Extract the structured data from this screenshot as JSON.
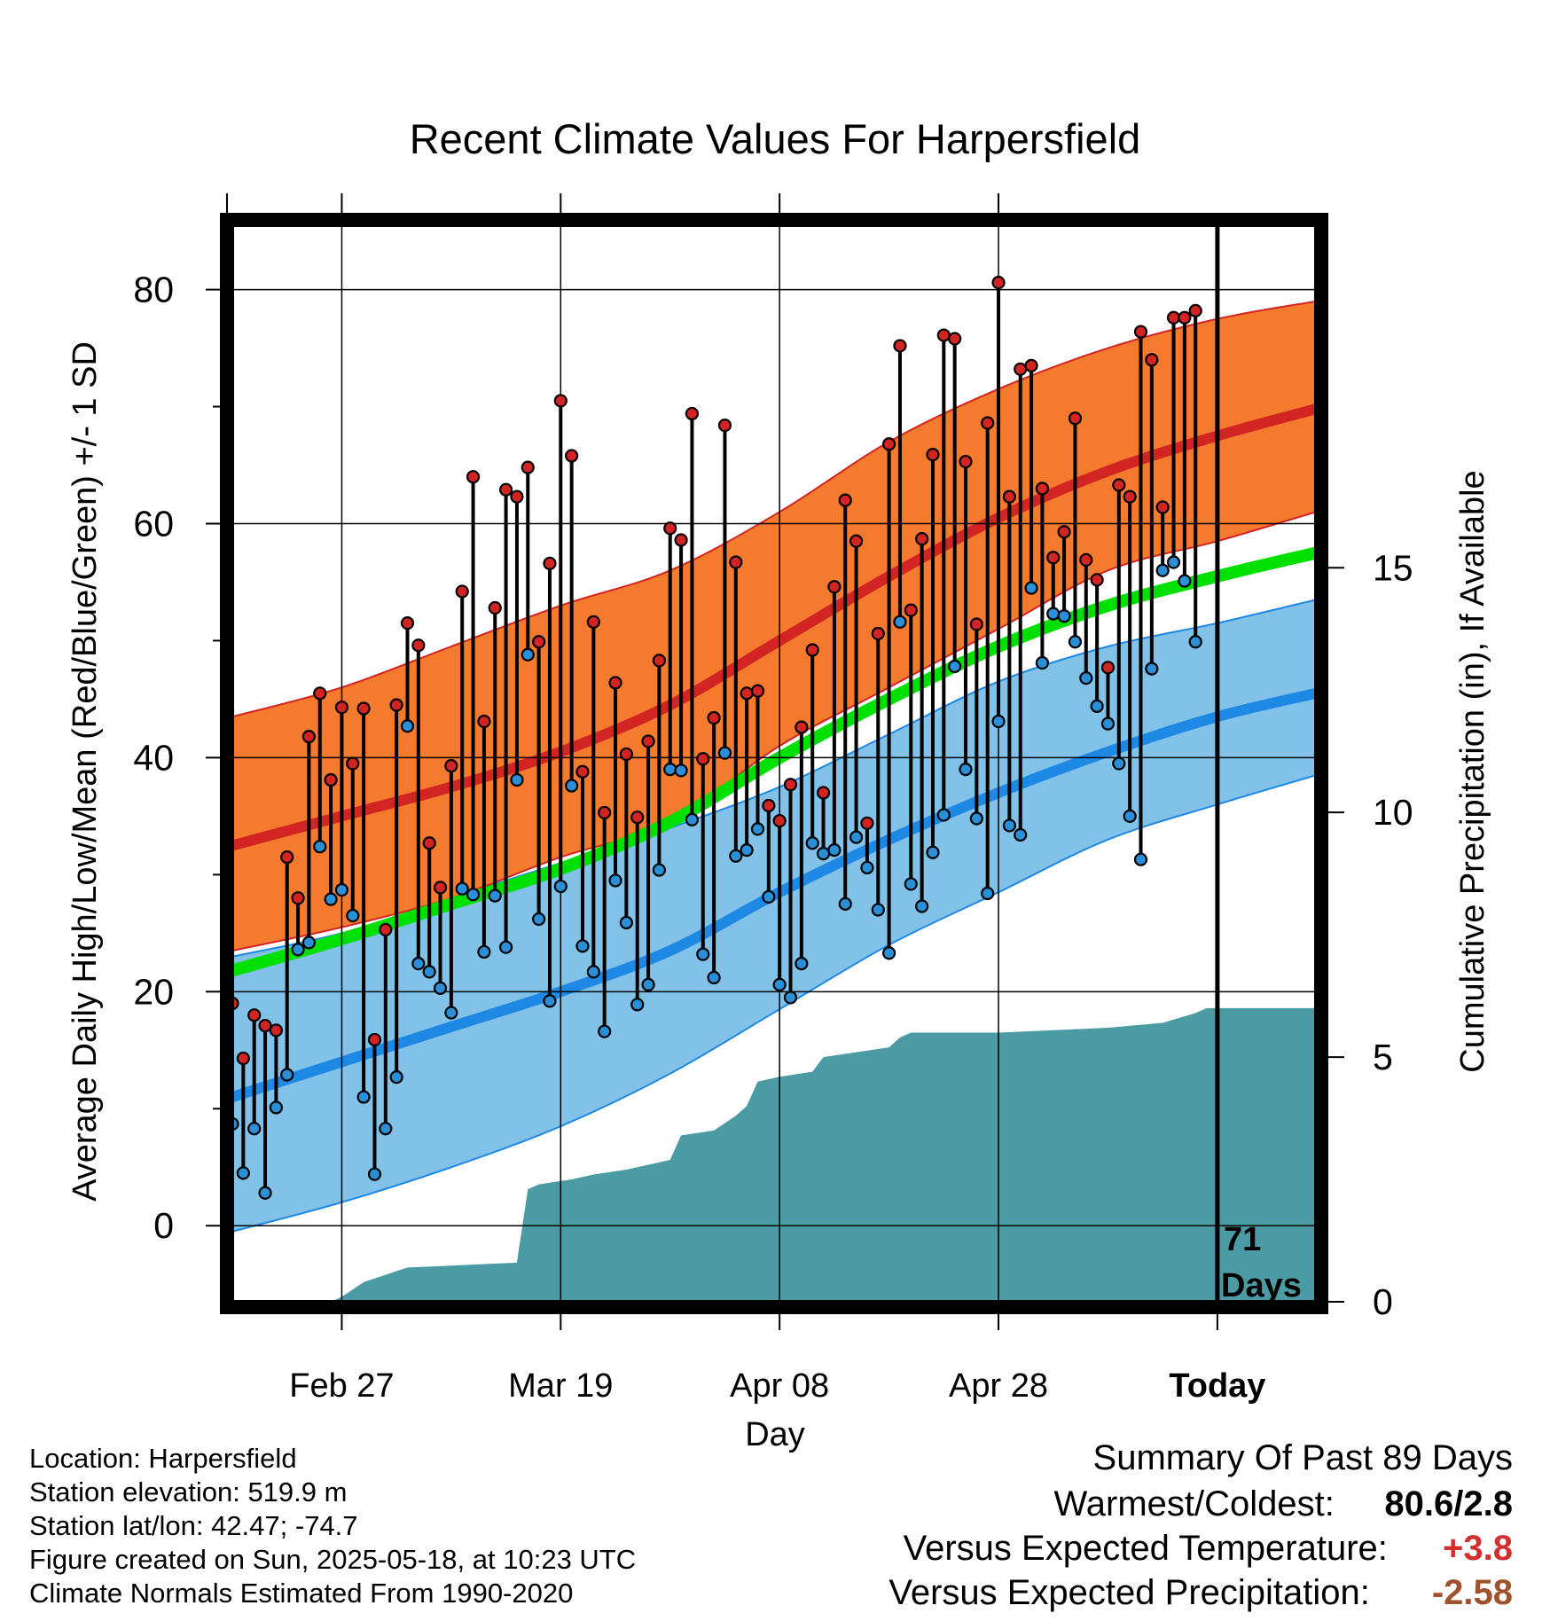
{
  "chart_data": {
    "type": "line",
    "title": "Recent Climate Values For Harpersfield",
    "xlabel": "Day",
    "ylabel": "Average Daily High/Low/Mean (Red/Blue/Green) +/- 1 SD",
    "y2label": "Cumulative Precipitation (in), If Available",
    "ylim": [
      -6.5,
      85.5
    ],
    "y2lim": [
      0,
      22
    ],
    "y_ticks": [
      "0",
      "20",
      "40",
      "60",
      "80"
    ],
    "y2_ticks": [
      "0",
      "5",
      "10",
      "15"
    ],
    "x_ticks": [
      "Feb 27",
      "Mar 19",
      "Apr 08",
      "Apr 28",
      "Today"
    ],
    "grid": true,
    "today_marker": {
      "label_line1": "71",
      "label_line2": "Days"
    },
    "normals": {
      "day": [
        0,
        10,
        20,
        30,
        40,
        50,
        60,
        70,
        80,
        90,
        99
      ],
      "high_mean": [
        32.5,
        35.0,
        37.5,
        40.5,
        44.5,
        50.0,
        55.5,
        60.5,
        64.5,
        67.5,
        69.8
      ],
      "high_upper": [
        43.5,
        46.0,
        49.5,
        53.0,
        56.0,
        61.0,
        67.0,
        71.5,
        75.0,
        77.5,
        79.0
      ],
      "high_lower": [
        23.5,
        25.5,
        28.0,
        31.5,
        34.5,
        41.0,
        46.0,
        51.0,
        56.0,
        58.5,
        61.0
      ],
      "mean_normal": [
        21.8,
        24.5,
        27.5,
        30.5,
        34.5,
        40.0,
        45.0,
        49.5,
        53.0,
        55.5,
        57.5
      ],
      "low_mean": [
        11.0,
        14.0,
        17.0,
        20.0,
        23.5,
        28.5,
        33.0,
        37.0,
        40.5,
        43.5,
        45.5
      ],
      "low_upper": [
        23.0,
        25.0,
        28.0,
        31.0,
        34.0,
        37.5,
        42.0,
        46.5,
        49.5,
        51.5,
        53.5
      ],
      "low_lower": [
        -0.5,
        2.0,
        5.0,
        8.5,
        13.0,
        18.5,
        24.0,
        28.5,
        33.0,
        36.0,
        38.5
      ]
    },
    "series": [
      {
        "name": "Daily High/Low",
        "day": [
          0,
          1,
          2,
          3,
          4,
          5,
          6,
          7,
          8,
          9,
          10,
          11,
          12,
          13,
          14,
          15,
          16,
          17,
          18,
          19,
          20,
          21,
          22,
          23,
          24,
          25,
          26,
          27,
          28,
          29,
          30,
          31,
          32,
          33,
          34,
          35,
          36,
          37,
          38,
          39,
          40,
          41,
          42,
          43,
          44,
          45,
          46,
          47,
          48,
          49,
          50,
          51,
          52,
          53,
          54,
          55,
          56,
          57,
          58,
          59,
          60,
          61,
          62,
          63,
          64,
          65,
          66,
          67,
          68,
          69,
          70,
          71,
          72,
          73,
          74,
          75,
          76,
          77,
          78,
          79,
          80,
          81,
          82,
          83,
          84,
          85,
          86,
          87,
          88
        ],
        "high": [
          19.0,
          14.3,
          18.0,
          17.1,
          16.7,
          31.5,
          28.0,
          41.8,
          45.5,
          38.1,
          44.3,
          39.5,
          44.2,
          15.9,
          25.3,
          44.5,
          51.5,
          49.6,
          32.7,
          28.9,
          39.3,
          54.2,
          64.0,
          43.1,
          52.8,
          62.9,
          62.3,
          64.8,
          49.9,
          56.6,
          70.5,
          65.8,
          38.8,
          51.6,
          35.3,
          46.4,
          40.3,
          34.9,
          41.4,
          48.3,
          59.6,
          58.6,
          69.4,
          39.9,
          43.4,
          68.4,
          56.7,
          45.5,
          45.7,
          35.9,
          34.6,
          37.7,
          42.6,
          49.2,
          37.0,
          54.6,
          62.0,
          58.5,
          34.4,
          50.6,
          66.8,
          75.2,
          52.6,
          58.7,
          65.9,
          76.1,
          75.8,
          65.3,
          51.4,
          68.6,
          80.6,
          62.3,
          73.2,
          73.5,
          63.0,
          57.1,
          59.3,
          69.0,
          56.9,
          55.2,
          47.7,
          63.3,
          62.3,
          76.4,
          74.0,
          61.4,
          77.6,
          77.6,
          78.2
        ],
        "low": [
          8.7,
          4.5,
          8.3,
          2.8,
          10.1,
          12.9,
          23.6,
          24.2,
          32.4,
          27.9,
          28.7,
          26.5,
          11.0,
          4.4,
          8.3,
          12.7,
          42.7,
          22.4,
          21.7,
          20.3,
          18.2,
          28.8,
          28.3,
          23.4,
          28.2,
          23.8,
          38.1,
          48.8,
          26.2,
          19.2,
          29.0,
          37.6,
          23.9,
          21.7,
          16.6,
          29.5,
          25.9,
          18.9,
          20.6,
          30.4,
          39.0,
          38.9,
          34.7,
          23.2,
          21.2,
          40.4,
          31.6,
          32.1,
          33.9,
          28.1,
          20.6,
          19.5,
          22.4,
          32.7,
          31.8,
          32.1,
          27.5,
          33.2,
          30.6,
          27.0,
          23.3,
          51.6,
          29.2,
          27.3,
          31.9,
          35.1,
          47.8,
          39.0,
          34.8,
          28.4,
          43.1,
          34.2,
          33.4,
          54.5,
          48.1,
          52.3,
          52.1,
          49.9,
          46.8,
          44.4,
          42.9,
          39.5,
          35.0,
          31.3,
          47.6,
          56.0,
          56.7,
          55.1,
          49.9
        ]
      }
    ],
    "precipitation": {
      "day": [
        0,
        9,
        10,
        12,
        16,
        26,
        27,
        28,
        31,
        33,
        36,
        40,
        41,
        44,
        46,
        47,
        48,
        50,
        53,
        54,
        57,
        60,
        61,
        62,
        63,
        70,
        80,
        85,
        88,
        89,
        99
      ],
      "cumulative": [
        0.0,
        0.0,
        0.1,
        0.4,
        0.7,
        0.8,
        2.3,
        2.4,
        2.5,
        2.6,
        2.7,
        2.9,
        3.4,
        3.5,
        3.8,
        4.0,
        4.5,
        4.6,
        4.7,
        5.0,
        5.1,
        5.2,
        5.4,
        5.5,
        5.5,
        5.5,
        5.6,
        5.7,
        5.9,
        6.0,
        6.0
      ]
    }
  },
  "footer": {
    "location": "Location: Harpersfield",
    "elevation": "Station elevation: 519.9 m",
    "latlon": "Station lat/lon: 42.47; -74.7",
    "created": "Figure created on Sun, 2025-05-18, at 10:23 UTC",
    "normals": "Climate Normals Estimated From 1990-2020"
  },
  "summary": {
    "heading": "Summary Of Past 89 Days",
    "warm_cold_label": "Warmest/Coldest:",
    "warm_cold_value": "80.6/2.8",
    "temp_label": "Versus Expected Temperature:",
    "temp_value": "+3.8",
    "precip_label": "Versus Expected Precipitation:",
    "precip_value": "-2.58",
    "colors": {
      "temp_value": "#d32f2f",
      "precip_value": "#a0522d"
    }
  },
  "colors": {
    "high_band": "#f47a2e",
    "high_line": "#d32424",
    "low_band": "#83c2e8",
    "low_line": "#1e88e5",
    "mean_line": "#00e000",
    "precip_fill": "#4a9ba3",
    "high_dot": "#d32424",
    "low_dot": "#2a8fd6"
  }
}
